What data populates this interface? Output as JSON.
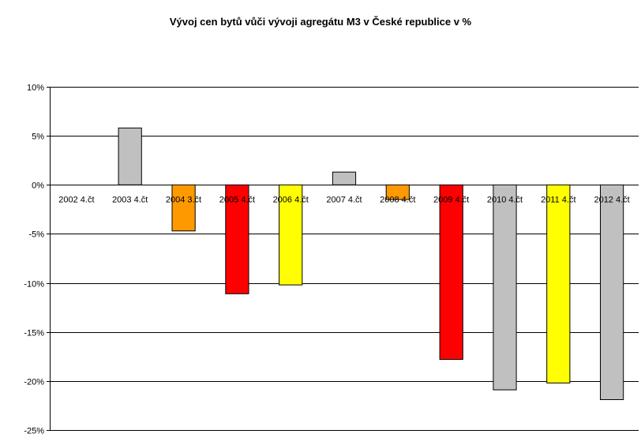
{
  "chart_data": {
    "type": "bar",
    "title": "Vývoj cen bytů vůči vývoji agregátu M3 v České republice v %",
    "xlabel": "",
    "ylabel": "",
    "ylim": [
      -25,
      10
    ],
    "y_ticks": [
      10,
      5,
      0,
      -5,
      -10,
      -15,
      -20,
      -25
    ],
    "y_tick_labels": [
      "10%",
      "5%",
      "0%",
      "-5%",
      "-10%",
      "-15%",
      "-20%",
      "-25%"
    ],
    "grid": true,
    "legend": "none",
    "categories": [
      "2002 4.čt",
      "2003 4.čt",
      "2004 3.čt",
      "2005 4.čt",
      "2006 4.čt",
      "2007 4.čt",
      "2008 4.čt",
      "2009 4.čt",
      "2010 4.čt",
      "2011 4.čt",
      "2012 4.čt"
    ],
    "values": [
      0,
      5.8,
      -4.7,
      -11.1,
      -10.2,
      1.3,
      -1.5,
      -17.8,
      -20.9,
      -20.2,
      -21.9
    ],
    "colors": [
      "#c0c0c0",
      "#c0c0c0",
      "#ff9900",
      "#ff0000",
      "#ffff00",
      "#c0c0c0",
      "#ff9900",
      "#ff0000",
      "#c0c0c0",
      "#ffff00",
      "#c0c0c0"
    ]
  }
}
